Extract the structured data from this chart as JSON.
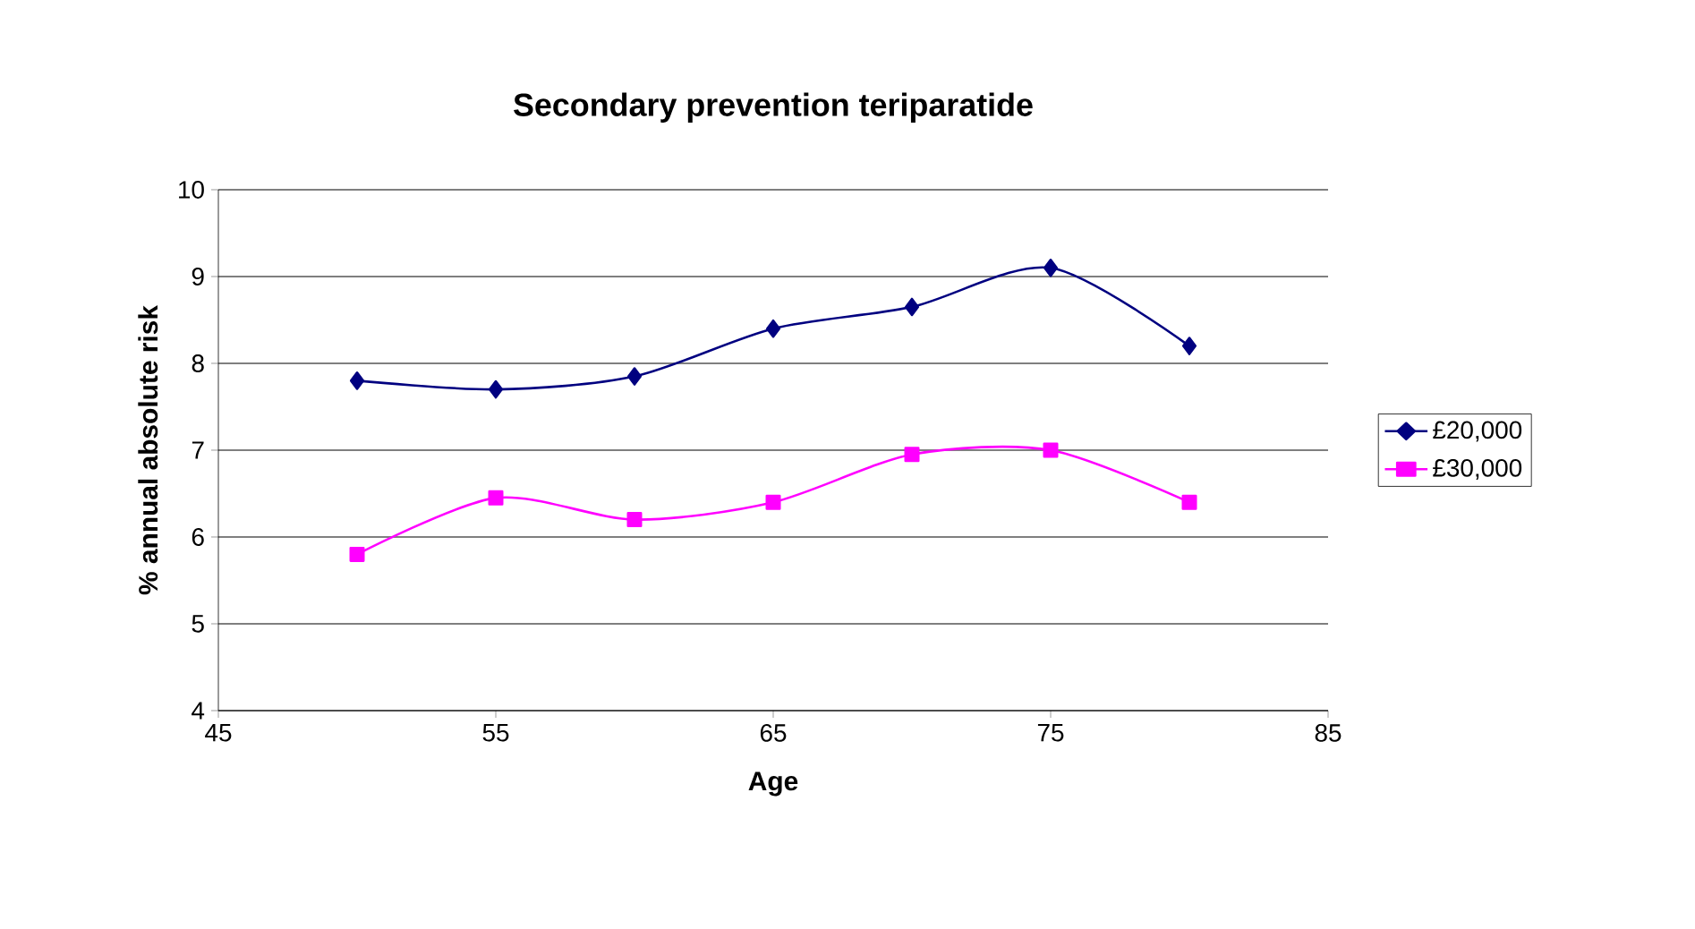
{
  "chart_data": {
    "type": "line",
    "title": "Secondary prevention  teriparatide",
    "xlabel": "Age",
    "ylabel": "% annual absolute risk",
    "x": [
      50,
      55,
      60,
      65,
      70,
      75,
      80
    ],
    "series": [
      {
        "name": "£20,000",
        "color": "#000080",
        "marker": "diamond",
        "values": [
          7.8,
          7.7,
          7.85,
          8.4,
          8.65,
          9.1,
          8.2
        ]
      },
      {
        "name": "£30,000",
        "color": "#ff00ff",
        "marker": "square",
        "values": [
          5.8,
          6.45,
          6.2,
          6.4,
          6.95,
          7.0,
          6.4
        ]
      }
    ],
    "xlim": [
      45,
      85
    ],
    "ylim": [
      4,
      10
    ],
    "xticks": [
      45,
      55,
      65,
      75,
      85
    ],
    "yticks": [
      4,
      5,
      6,
      7,
      8,
      9,
      10
    ],
    "grid": "y",
    "legend": "right",
    "line_style": "solid"
  }
}
